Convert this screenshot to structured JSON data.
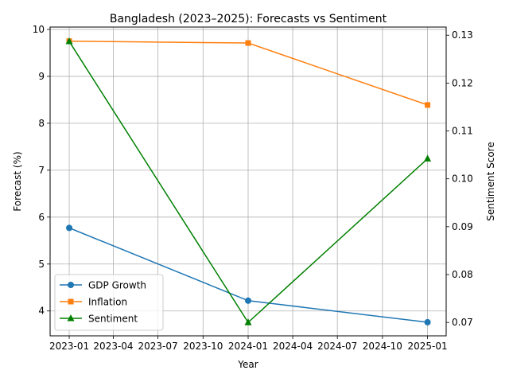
{
  "chart_data": {
    "type": "line",
    "title": "Bangladesh (2023–2025): Forecasts vs Sentiment",
    "xlabel": "Year",
    "ylabel": "Forecast (%)",
    "y2label": "Sentiment Score",
    "x": [
      "2023-01-01",
      "2024-01-01",
      "2025-01-01"
    ],
    "xlim": [
      "2022-11-23",
      "2025-02-08"
    ],
    "x_ticks": [
      "2023-01",
      "2023-04",
      "2023-07",
      "2023-10",
      "2024-01",
      "2024-04",
      "2024-07",
      "2024-10",
      "2025-01"
    ],
    "ylim": [
      3.47,
      10.05
    ],
    "y_ticks": [
      4,
      5,
      6,
      7,
      8,
      9,
      10
    ],
    "y2lim": [
      0.0672,
      0.1317
    ],
    "y2_ticks": [
      0.07,
      0.08,
      0.09,
      0.1,
      0.11,
      0.12,
      0.13
    ],
    "grid": true,
    "legend_position": "lower-left",
    "series": [
      {
        "name": "GDP Growth",
        "axis": "left",
        "color": "#1f77b4",
        "marker": "circle",
        "values": [
          5.77,
          4.22,
          3.76
        ]
      },
      {
        "name": "Inflation",
        "axis": "left",
        "color": "#ff7f0e",
        "marker": "square",
        "values": [
          9.75,
          9.71,
          8.39
        ]
      },
      {
        "name": "Sentiment",
        "axis": "right",
        "color": "#008000",
        "marker": "triangle",
        "values": [
          0.1287,
          0.07,
          0.1042
        ]
      }
    ]
  }
}
